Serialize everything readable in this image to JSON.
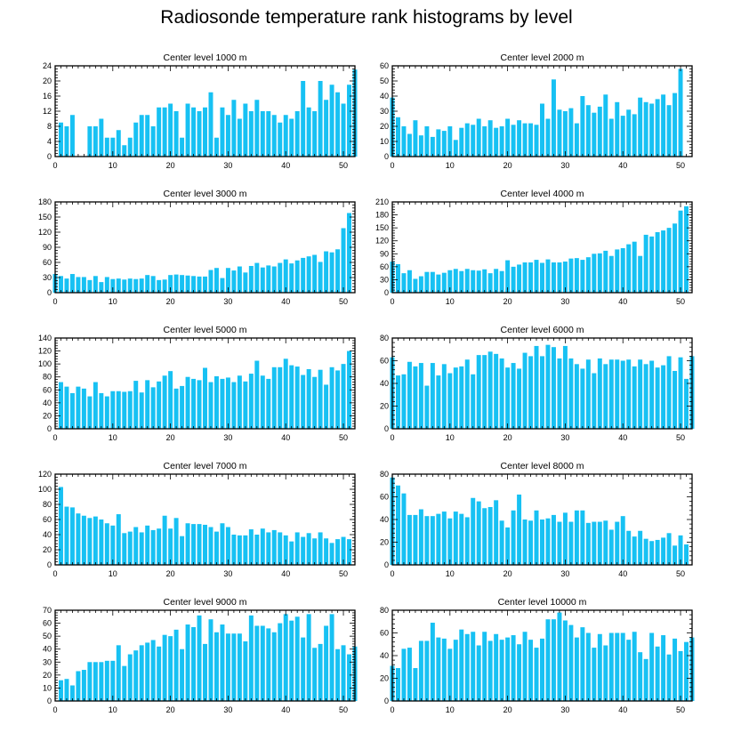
{
  "title": "Radiosonde temperature rank histograms by level",
  "colors": {
    "bar": "#17c1f3",
    "axis": "#000000",
    "background": "#ffffff"
  },
  "chart_data": [
    {
      "type": "bar",
      "title": "Center level 1000 m",
      "xlim": [
        0,
        52
      ],
      "xticks": [
        0,
        10,
        20,
        30,
        40,
        50
      ],
      "ylim": [
        0,
        24
      ],
      "yticks": [
        0,
        4,
        8,
        12,
        16,
        20,
        24
      ],
      "yaxis_side": "left",
      "values": [
        0,
        9,
        8,
        11,
        0,
        0,
        8,
        8,
        10,
        5,
        5,
        7,
        3,
        5,
        9,
        11,
        11,
        8,
        13,
        13,
        14,
        12,
        5,
        14,
        13,
        12,
        13,
        17,
        5,
        13,
        11,
        15,
        10,
        14,
        12,
        15,
        12,
        12,
        11,
        9,
        11,
        10,
        12,
        20,
        13,
        12,
        20,
        15,
        19,
        17,
        14,
        19,
        23
      ]
    },
    {
      "type": "bar",
      "title": "Center level 2000 m",
      "xlim": [
        0,
        52
      ],
      "xticks": [
        0,
        10,
        20,
        30,
        40,
        50
      ],
      "ylim": [
        0,
        60
      ],
      "yticks": [
        0,
        10,
        20,
        30,
        40,
        50,
        60
      ],
      "yaxis_side": "right",
      "values": [
        39,
        26,
        20,
        15,
        24,
        14,
        20,
        13,
        18,
        17,
        20,
        11,
        19,
        22,
        21,
        25,
        20,
        24,
        19,
        20,
        25,
        21,
        24,
        22,
        22,
        21,
        35,
        25,
        51,
        31,
        30,
        32,
        22,
        40,
        34,
        29,
        33,
        41,
        25,
        36,
        27,
        31,
        28,
        39,
        36,
        35,
        38,
        41,
        34,
        42,
        58,
        0,
        0
      ]
    },
    {
      "type": "bar",
      "title": "Center level 3000 m",
      "xlim": [
        0,
        52
      ],
      "xticks": [
        0,
        10,
        20,
        30,
        40,
        50
      ],
      "ylim": [
        0,
        180
      ],
      "yticks": [
        0,
        30,
        60,
        90,
        120,
        150,
        180
      ],
      "yaxis_side": "left",
      "values": [
        37,
        33,
        28,
        37,
        31,
        31,
        25,
        33,
        21,
        31,
        27,
        28,
        26,
        28,
        27,
        28,
        35,
        33,
        25,
        26,
        35,
        36,
        35,
        34,
        33,
        32,
        32,
        45,
        49,
        29,
        49,
        44,
        52,
        40,
        53,
        59,
        50,
        54,
        52,
        59,
        66,
        58,
        64,
        69,
        72,
        75,
        61,
        82,
        80,
        86,
        128,
        158,
        0
      ]
    },
    {
      "type": "bar",
      "title": "Center level 4000 m",
      "xlim": [
        0,
        52
      ],
      "xticks": [
        0,
        10,
        20,
        30,
        40,
        50
      ],
      "ylim": [
        0,
        210
      ],
      "yticks": [
        0,
        30,
        60,
        90,
        120,
        150,
        180,
        210
      ],
      "yaxis_side": "right",
      "values": [
        72,
        66,
        45,
        52,
        32,
        38,
        48,
        48,
        42,
        46,
        52,
        55,
        50,
        55,
        52,
        51,
        54,
        45,
        55,
        50,
        75,
        60,
        65,
        70,
        70,
        76,
        69,
        77,
        70,
        70,
        72,
        79,
        80,
        76,
        82,
        90,
        91,
        97,
        85,
        100,
        103,
        112,
        118,
        85,
        134,
        130,
        140,
        144,
        150,
        160,
        190,
        200,
        0
      ]
    },
    {
      "type": "bar",
      "title": "Center level 5000 m",
      "xlim": [
        0,
        52
      ],
      "xticks": [
        0,
        10,
        20,
        30,
        40,
        50
      ],
      "ylim": [
        0,
        140
      ],
      "yticks": [
        0,
        20,
        40,
        60,
        80,
        100,
        120,
        140
      ],
      "yaxis_side": "left",
      "values": [
        0,
        72,
        65,
        55,
        65,
        62,
        50,
        72,
        55,
        50,
        58,
        58,
        57,
        58,
        74,
        56,
        75,
        64,
        73,
        82,
        89,
        62,
        66,
        80,
        77,
        75,
        94,
        72,
        81,
        77,
        79,
        72,
        82,
        73,
        85,
        105,
        82,
        77,
        95,
        95,
        108,
        98,
        96,
        83,
        92,
        80,
        91,
        68,
        95,
        90,
        100,
        120,
        0
      ]
    },
    {
      "type": "bar",
      "title": "Center level 6000 m",
      "xlim": [
        0,
        52
      ],
      "xticks": [
        0,
        10,
        20,
        30,
        40,
        50
      ],
      "ylim": [
        0,
        80
      ],
      "yticks": [
        0,
        20,
        40,
        60,
        80
      ],
      "yaxis_side": "right",
      "values": [
        63,
        47,
        48,
        59,
        55,
        58,
        38,
        58,
        47,
        57,
        49,
        54,
        55,
        61,
        48,
        65,
        65,
        68,
        66,
        62,
        54,
        58,
        53,
        67,
        64,
        73,
        64,
        74,
        72,
        62,
        73,
        62,
        57,
        53,
        61,
        49,
        62,
        57,
        61,
        61,
        60,
        61,
        55,
        61,
        57,
        60,
        54,
        56,
        64,
        51,
        63,
        44,
        64
      ]
    },
    {
      "type": "bar",
      "title": "Center level 7000 m",
      "xlim": [
        0,
        52
      ],
      "xticks": [
        0,
        10,
        20,
        30,
        40,
        50
      ],
      "ylim": [
        0,
        120
      ],
      "yticks": [
        0,
        20,
        40,
        60,
        80,
        100,
        120
      ],
      "yaxis_side": "left",
      "values": [
        0,
        103,
        77,
        76,
        68,
        65,
        62,
        64,
        60,
        55,
        52,
        67,
        42,
        44,
        50,
        43,
        52,
        46,
        48,
        65,
        48,
        62,
        38,
        55,
        54,
        54,
        53,
        50,
        44,
        55,
        50,
        40,
        39,
        39,
        47,
        40,
        48,
        43,
        46,
        43,
        39,
        31,
        43,
        37,
        42,
        35,
        43,
        35,
        29,
        34,
        37,
        34,
        0
      ]
    },
    {
      "type": "bar",
      "title": "Center level 8000 m",
      "xlim": [
        0,
        52
      ],
      "xticks": [
        0,
        10,
        20,
        30,
        40,
        50
      ],
      "ylim": [
        0,
        80
      ],
      "yticks": [
        0,
        20,
        40,
        60,
        80
      ],
      "yaxis_side": "right",
      "values": [
        77,
        70,
        63,
        44,
        44,
        49,
        43,
        43,
        45,
        47,
        41,
        47,
        45,
        42,
        59,
        56,
        50,
        51,
        57,
        39,
        33,
        48,
        62,
        40,
        39,
        48,
        40,
        41,
        44,
        38,
        46,
        38,
        48,
        48,
        37,
        38,
        38,
        39,
        31,
        38,
        43,
        30,
        25,
        30,
        23,
        21,
        22,
        24,
        28,
        17,
        26,
        18,
        0
      ]
    },
    {
      "type": "bar",
      "title": "Center level 9000 m",
      "xlim": [
        0,
        52
      ],
      "xticks": [
        0,
        10,
        20,
        30,
        40,
        50
      ],
      "ylim": [
        0,
        70
      ],
      "yticks": [
        0,
        10,
        20,
        30,
        40,
        50,
        60,
        70
      ],
      "yaxis_side": "left",
      "values": [
        0,
        16,
        17,
        12,
        23,
        24,
        30,
        30,
        30,
        31,
        31,
        43,
        27,
        36,
        39,
        43,
        45,
        47,
        42,
        51,
        50,
        55,
        40,
        59,
        57,
        66,
        44,
        63,
        53,
        59,
        52,
        52,
        52,
        46,
        66,
        58,
        58,
        56,
        53,
        60,
        67,
        62,
        65,
        49,
        67,
        41,
        44,
        58,
        67,
        40,
        43,
        36,
        42
      ]
    },
    {
      "type": "bar",
      "title": "Center level 10000 m",
      "xlim": [
        0,
        52
      ],
      "xticks": [
        0,
        10,
        20,
        30,
        40,
        50
      ],
      "ylim": [
        0,
        80
      ],
      "yticks": [
        0,
        20,
        40,
        60,
        80
      ],
      "yaxis_side": "right",
      "values": [
        31,
        29,
        46,
        47,
        29,
        53,
        53,
        69,
        56,
        55,
        46,
        54,
        63,
        59,
        61,
        49,
        61,
        53,
        59,
        54,
        56,
        58,
        50,
        61,
        54,
        47,
        55,
        72,
        72,
        78,
        71,
        67,
        56,
        65,
        60,
        47,
        59,
        49,
        60,
        60,
        60,
        54,
        61,
        43,
        37,
        60,
        48,
        58,
        41,
        55,
        44,
        52,
        56
      ]
    }
  ]
}
